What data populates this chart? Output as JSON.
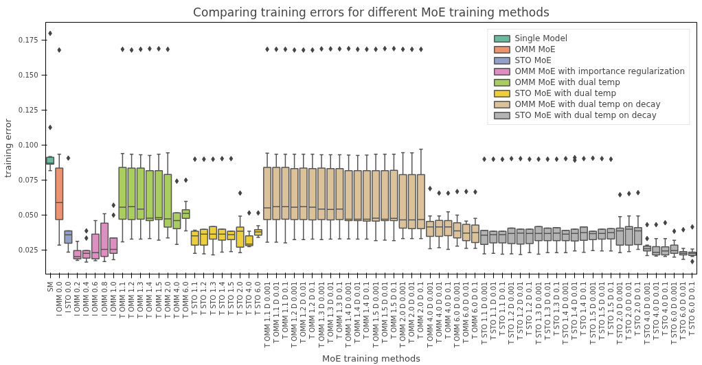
{
  "chart_data": {
    "type": "box",
    "title": "Comparing training errors for different MoE training methods",
    "xlabel": "MoE training methods",
    "ylabel": "training error",
    "categories": [
      "SM",
      "I OMM 0.0",
      "I STO 0.0",
      "I OMM 0.2",
      "I OMM 0.4",
      "I OMM 0.6",
      "I OMM 0.8",
      "I OMM 1.0",
      "T OMM 1.1",
      "T OMM 1.2",
      "T OMM 1.3",
      "T OMM 1.4",
      "T OMM 1.5",
      "T OMM 2.0",
      "T OMM 4.0",
      "T OMM 6.0",
      "T STO 1.1",
      "T STO 1.2",
      "T STO 1.3",
      "T STO 1.4",
      "T STO 1.5",
      "T STO 2.0",
      "T STO 4.0",
      "T STO 6.0",
      "T OMM 1.1 D 0.001",
      "T OMM 1.1 D 0.01",
      "T OMM 1.1 D 0.1",
      "T OMM 1.2 D 0.001",
      "T OMM 1.2 D 0.01",
      "T OMM 1.2 D 0.1",
      "T OMM 1.3 D 0.001",
      "T OMM 1.3 D 0.01",
      "T OMM 1.3 D 0.1",
      "T OMM 1.4 D 0.001",
      "T OMM 1.4 D 0.01",
      "T OMM 1.4 D 0.1",
      "T OMM 1.5 D 0.001",
      "T OMM 1.5 D 0.01",
      "T OMM 1.5 D 0.1",
      "T OMM 2.0 D 0.001",
      "T OMM 2.0 D 0.01",
      "T OMM 2.0 D 0.1",
      "T OMM 4.0 D 0.001",
      "T OMM 4.0 D 0.01",
      "T OMM 4.0 D 0.1",
      "T OMM 6.0 D 0.001",
      "T OMM 6.0 D 0.01",
      "T OMM 6.0 D 0.1",
      "T STO 1.1 D 0.001",
      "T STO 1.1 D 0.01",
      "T STO 1.1 D 0.1",
      "T STO 1.2 D 0.001",
      "T STO 1.2 D 0.01",
      "T STO 1.2 D 0.1",
      "T STO 1.3 D 0.001",
      "T STO 1.3 D 0.01",
      "T STO 1.3 D 0.1",
      "T STO 1.4 D 0.001",
      "T STO 1.4 D 0.01",
      "T STO 1.4 D 0.1",
      "T STO 1.5 D 0.001",
      "T STO 1.5 D 0.01",
      "T STO 1.5 D 0.1",
      "T STO 2.0 D 0.001",
      "T STO 2.0 D 0.01",
      "T STO 2.0 D 0.1",
      "T STO 4.0 D 0.001",
      "T STO 4.0 D 0.01",
      "T STO 4.0 D 0.1",
      "T STO 6.0 D 0.001",
      "T STO 6.0 D 0.01",
      "T STO 6.0 D 0.1"
    ],
    "ylim": [
      0.0077,
      0.1876
    ],
    "yticks": [
      0.025,
      {
        "value": 0.05,
        "label": "0.050"
      },
      0.075,
      {
        "value": 0.1,
        "label": "0.100"
      },
      0.125,
      {
        "value": 0.15,
        "label": "0.150"
      },
      0.175
    ],
    "grid": false,
    "legend": "top right",
    "marker": "diamond",
    "series": [
      {
        "name": "Single Model",
        "color": "#6bb99f",
        "x": [
          "SM"
        ],
        "boxes": [
          {
            "low": 0.0816,
            "q1": 0.0863,
            "median": 0.087,
            "q3": 0.0912,
            "high": 0.0917,
            "outliers": [
              0.1797,
              0.1125
            ]
          }
        ]
      },
      {
        "name": "OMM MoE",
        "color": "#ec9470",
        "x": [
          "I OMM 0.0"
        ],
        "boxes": [
          {
            "low": 0.0284,
            "q1": 0.0467,
            "median": 0.0588,
            "q3": 0.0834,
            "high": 0.0933,
            "outliers": [
              0.1678
            ]
          }
        ]
      },
      {
        "name": "STO MoE",
        "color": "#93a1c8",
        "x": [
          "I STO 0.0"
        ],
        "boxes": [
          {
            "low": 0.0234,
            "q1": 0.0297,
            "median": 0.0358,
            "q3": 0.0386,
            "high": 0.0386,
            "outliers": [
              0.0906
            ]
          }
        ]
      },
      {
        "name": "OMM MoE with importance regularization",
        "color": "#dc8fc0",
        "x": [
          "I OMM 0.2",
          "I OMM 0.4",
          "I OMM 0.6",
          "I OMM 0.8",
          "I OMM 1.0"
        ],
        "boxes": [
          {
            "low": 0.0175,
            "q1": 0.0186,
            "median": 0.0202,
            "q3": 0.0245,
            "high": 0.0311
          },
          {
            "low": 0.0163,
            "q1": 0.0191,
            "median": 0.0225,
            "q3": 0.0245,
            "high": 0.0245,
            "outliers": [
              0.0386,
              0.0334
            ]
          },
          {
            "low": 0.0172,
            "q1": 0.0186,
            "median": 0.023,
            "q3": 0.0363,
            "high": 0.0459
          },
          {
            "low": 0.0167,
            "q1": 0.0203,
            "median": 0.0253,
            "q3": 0.0441,
            "high": 0.0508
          },
          {
            "low": 0.018,
            "q1": 0.0225,
            "median": 0.0253,
            "q3": 0.0336,
            "high": 0.0336,
            "outliers": [
              0.0569,
              0.0498
            ]
          }
        ]
      },
      {
        "name": "OMM MoE with dual temp",
        "color": "#a9cd5e",
        "x": [
          "T OMM 1.1",
          "T OMM 1.2",
          "T OMM 1.3",
          "T OMM 1.4",
          "T OMM 1.5",
          "T OMM 2.0",
          "T OMM 4.0",
          "T OMM 6.0"
        ],
        "boxes": [
          {
            "low": 0.0308,
            "q1": 0.0469,
            "median": 0.0555,
            "q3": 0.0839,
            "high": 0.0938,
            "outliers": [
              0.1683
            ]
          },
          {
            "low": 0.0327,
            "q1": 0.0467,
            "median": 0.0558,
            "q3": 0.0834,
            "high": 0.0933,
            "outliers": [
              0.1678
            ]
          },
          {
            "low": 0.0327,
            "q1": 0.0469,
            "median": 0.0541,
            "q3": 0.0834,
            "high": 0.093,
            "outliers": [
              0.1683
            ]
          },
          {
            "low": 0.0331,
            "q1": 0.0459,
            "median": 0.0477,
            "q3": 0.0816,
            "high": 0.0925,
            "outliers": [
              0.1687
            ]
          },
          {
            "low": 0.032,
            "q1": 0.0467,
            "median": 0.048,
            "q3": 0.0816,
            "high": 0.0933,
            "outliers": [
              0.1687
            ]
          },
          {
            "low": 0.0336,
            "q1": 0.0413,
            "median": 0.0472,
            "q3": 0.0789,
            "high": 0.0944,
            "outliers": [
              0.1683
            ]
          },
          {
            "low": 0.0289,
            "q1": 0.0402,
            "median": 0.0459,
            "q3": 0.0514,
            "high": 0.0514,
            "outliers": [
              0.0741
            ]
          },
          {
            "low": 0.0386,
            "q1": 0.0475,
            "median": 0.0511,
            "q3": 0.0536,
            "high": 0.0597,
            "outliers": [
              0.0748
            ]
          }
        ]
      },
      {
        "name": "STO MoE with dual temp",
        "color": "#eccf3a",
        "x": [
          "T STO 1.1",
          "T STO 1.2",
          "T STO 1.3",
          "T STO 1.4",
          "T STO 1.5",
          "T STO 2.0",
          "T STO 4.0",
          "T STO 6.0"
        ],
        "boxes": [
          {
            "low": 0.0225,
            "q1": 0.0284,
            "median": 0.035,
            "q3": 0.0383,
            "high": 0.0391,
            "outliers": [
              0.0898
            ]
          },
          {
            "low": 0.0222,
            "q1": 0.0284,
            "median": 0.0363,
            "q3": 0.0397,
            "high": 0.0397,
            "outliers": [
              0.0898
            ]
          },
          {
            "low": 0.0214,
            "q1": 0.0327,
            "median": 0.0363,
            "q3": 0.0417,
            "high": 0.0417,
            "outliers": [
              0.0898
            ]
          },
          {
            "low": 0.0234,
            "q1": 0.032,
            "median": 0.0363,
            "q3": 0.0398,
            "high": 0.0398,
            "outliers": [
              0.0902
            ]
          },
          {
            "low": 0.0237,
            "q1": 0.0323,
            "median": 0.0359,
            "q3": 0.0383,
            "high": 0.0383,
            "outliers": [
              0.0902
            ]
          },
          {
            "low": 0.023,
            "q1": 0.0269,
            "median": 0.0383,
            "q3": 0.0413,
            "high": 0.0491,
            "outliers": [
              0.0656
            ]
          },
          {
            "low": 0.0273,
            "q1": 0.028,
            "median": 0.0291,
            "q3": 0.035,
            "high": 0.0383,
            "outliers": [
              0.0514
            ]
          },
          {
            "low": 0.0339,
            "q1": 0.0355,
            "median": 0.0378,
            "q3": 0.0394,
            "high": 0.0422,
            "outliers": [
              0.0514
            ]
          }
        ]
      },
      {
        "name": "OMM MoE with dual temp on decay",
        "color": "#dcc29b",
        "x": [
          "T OMM 1.1 D 0.001",
          "T OMM 1.1 D 0.01",
          "T OMM 1.1 D 0.1",
          "T OMM 1.2 D 0.001",
          "T OMM 1.2 D 0.01",
          "T OMM 1.2 D 0.1",
          "T OMM 1.3 D 0.001",
          "T OMM 1.3 D 0.01",
          "T OMM 1.3 D 0.1",
          "T OMM 1.4 D 0.001",
          "T OMM 1.4 D 0.01",
          "T OMM 1.4 D 0.1",
          "T OMM 1.5 D 0.001",
          "T OMM 1.5 D 0.01",
          "T OMM 1.5 D 0.1",
          "T OMM 2.0 D 0.001",
          "T OMM 2.0 D 0.01",
          "T OMM 2.0 D 0.1",
          "T OMM 4.0 D 0.001",
          "T OMM 4.0 D 0.01",
          "T OMM 4.0 D 0.1",
          "T OMM 6.0 D 0.001",
          "T OMM 6.0 D 0.01",
          "T OMM 6.0 D 0.1"
        ],
        "boxes": [
          {
            "low": 0.0305,
            "q1": 0.0467,
            "median": 0.055,
            "q3": 0.0839,
            "high": 0.0941,
            "outliers": [
              0.1683
            ]
          },
          {
            "low": 0.0305,
            "q1": 0.0467,
            "median": 0.0558,
            "q3": 0.0839,
            "high": 0.0933,
            "outliers": [
              0.1683
            ]
          },
          {
            "low": 0.03,
            "q1": 0.0469,
            "median": 0.0558,
            "q3": 0.0839,
            "high": 0.0933,
            "outliers": [
              0.1683
            ]
          },
          {
            "low": 0.0323,
            "q1": 0.0467,
            "median": 0.0555,
            "q3": 0.0831,
            "high": 0.0933,
            "outliers": [
              0.1678
            ]
          },
          {
            "low": 0.0323,
            "q1": 0.0467,
            "median": 0.0558,
            "q3": 0.0834,
            "high": 0.0933,
            "outliers": [
              0.1678
            ]
          },
          {
            "low": 0.0327,
            "q1": 0.0464,
            "median": 0.0555,
            "q3": 0.0831,
            "high": 0.0933,
            "outliers": [
              0.1678
            ]
          },
          {
            "low": 0.0323,
            "q1": 0.0467,
            "median": 0.0542,
            "q3": 0.0834,
            "high": 0.093,
            "outliers": [
              0.1686
            ]
          },
          {
            "low": 0.0327,
            "q1": 0.0464,
            "median": 0.0539,
            "q3": 0.0831,
            "high": 0.093,
            "outliers": [
              0.1686
            ]
          },
          {
            "low": 0.0328,
            "q1": 0.0467,
            "median": 0.0542,
            "q3": 0.0831,
            "high": 0.093,
            "outliers": [
              0.1686
            ]
          },
          {
            "low": 0.0328,
            "q1": 0.0459,
            "median": 0.0469,
            "q3": 0.0816,
            "high": 0.0928,
            "outliers": [
              0.1688
            ]
          },
          {
            "low": 0.0327,
            "q1": 0.0459,
            "median": 0.0469,
            "q3": 0.0816,
            "high": 0.0925,
            "outliers": [
              0.1683
            ]
          },
          {
            "low": 0.0327,
            "q1": 0.0456,
            "median": 0.0469,
            "q3": 0.0816,
            "high": 0.0928,
            "outliers": [
              0.1683
            ]
          },
          {
            "low": 0.0316,
            "q1": 0.0456,
            "median": 0.0477,
            "q3": 0.0816,
            "high": 0.0933,
            "outliers": [
              0.1683
            ]
          },
          {
            "low": 0.032,
            "q1": 0.0459,
            "median": 0.0469,
            "q3": 0.0816,
            "high": 0.0933,
            "outliers": [
              0.1688
            ]
          },
          {
            "low": 0.0316,
            "q1": 0.0459,
            "median": 0.0475,
            "q3": 0.0819,
            "high": 0.0933,
            "outliers": [
              0.1688
            ]
          },
          {
            "low": 0.0331,
            "q1": 0.0405,
            "median": 0.0464,
            "q3": 0.0788,
            "high": 0.0945,
            "outliers": [
              0.1683
            ]
          },
          {
            "low": 0.0331,
            "q1": 0.0402,
            "median": 0.0464,
            "q3": 0.0788,
            "high": 0.0944,
            "outliers": [
              0.1683
            ]
          },
          {
            "low": 0.0331,
            "q1": 0.0402,
            "median": 0.0467,
            "q3": 0.0788,
            "high": 0.0969,
            "outliers": [
              0.1683
            ]
          },
          {
            "low": 0.0258,
            "q1": 0.0347,
            "median": 0.0414,
            "q3": 0.0453,
            "high": 0.0492,
            "outliers": [
              0.0688
            ]
          },
          {
            "low": 0.0266,
            "q1": 0.0347,
            "median": 0.0414,
            "q3": 0.0461,
            "high": 0.0492,
            "outliers": [
              0.0656
            ]
          },
          {
            "low": 0.0253,
            "q1": 0.0352,
            "median": 0.0414,
            "q3": 0.0459,
            "high": 0.0522,
            "outliers": [
              0.0655
            ]
          },
          {
            "low": 0.0277,
            "q1": 0.0336,
            "median": 0.0386,
            "q3": 0.0444,
            "high": 0.0498,
            "outliers": [
              0.0667
            ]
          },
          {
            "low": 0.0261,
            "q1": 0.0316,
            "median": 0.037,
            "q3": 0.0433,
            "high": 0.0456,
            "outliers": [
              0.0667
            ]
          },
          {
            "low": 0.0261,
            "q1": 0.0303,
            "median": 0.0373,
            "q3": 0.0428,
            "high": 0.0475,
            "outliers": [
              0.0664
            ]
          }
        ]
      },
      {
        "name": "STO MoE with dual temp on decay",
        "color": "#b3b3b3",
        "x": [
          "T STO 1.1 D 0.001",
          "T STO 1.1 D 0.01",
          "T STO 1.1 D 0.1",
          "T STO 1.2 D 0.001",
          "T STO 1.2 D 0.01",
          "T STO 1.2 D 0.1",
          "T STO 1.3 D 0.001",
          "T STO 1.3 D 0.01",
          "T STO 1.3 D 0.1",
          "T STO 1.4 D 0.001",
          "T STO 1.4 D 0.01",
          "T STO 1.4 D 0.1",
          "T STO 1.5 D 0.001",
          "T STO 1.5 D 0.01",
          "T STO 1.5 D 0.1",
          "T STO 2.0 D 0.001",
          "T STO 2.0 D 0.01",
          "T STO 2.0 D 0.1",
          "T STO 4.0 D 0.001",
          "T STO 4.0 D 0.01",
          "T STO 4.0 D 0.1",
          "T STO 6.0 D 0.001",
          "T STO 6.0 D 0.01",
          "T STO 6.0 D 0.1"
        ],
        "boxes": [
          {
            "low": 0.0222,
            "q1": 0.0289,
            "median": 0.0355,
            "q3": 0.0389,
            "high": 0.0389,
            "outliers": [
              0.0898
            ]
          },
          {
            "low": 0.0225,
            "q1": 0.03,
            "median": 0.0359,
            "q3": 0.0383,
            "high": 0.0383,
            "outliers": [
              0.0898
            ]
          },
          {
            "low": 0.0219,
            "q1": 0.03,
            "median": 0.0359,
            "q3": 0.0383,
            "high": 0.0383,
            "outliers": [
              0.0897
            ]
          },
          {
            "low": 0.0222,
            "q1": 0.0295,
            "median": 0.0367,
            "q3": 0.0406,
            "high": 0.0406,
            "outliers": [
              0.0902
            ]
          },
          {
            "low": 0.0217,
            "q1": 0.0292,
            "median": 0.037,
            "q3": 0.0398,
            "high": 0.0398,
            "outliers": [
              0.0902
            ]
          },
          {
            "low": 0.023,
            "q1": 0.0295,
            "median": 0.0367,
            "q3": 0.0398,
            "high": 0.0398,
            "outliers": [
              0.0898
            ]
          },
          {
            "low": 0.0219,
            "q1": 0.0316,
            "median": 0.0367,
            "q3": 0.0417,
            "high": 0.0417,
            "outliers": [
              0.0898
            ]
          },
          {
            "low": 0.023,
            "q1": 0.0316,
            "median": 0.0367,
            "q3": 0.0406,
            "high": 0.0406,
            "outliers": [
              0.0898
            ]
          },
          {
            "low": 0.023,
            "q1": 0.0316,
            "median": 0.037,
            "q3": 0.0409,
            "high": 0.0409,
            "outliers": [
              0.0898
            ]
          },
          {
            "low": 0.023,
            "q1": 0.0316,
            "median": 0.0363,
            "q3": 0.0389,
            "high": 0.0389,
            "outliers": [
              0.0902
            ]
          },
          {
            "low": 0.0242,
            "q1": 0.0313,
            "median": 0.0367,
            "q3": 0.0398,
            "high": 0.0398,
            "outliers": [
              0.0909,
              0.0891
            ]
          },
          {
            "low": 0.0233,
            "q1": 0.0319,
            "median": 0.0373,
            "q3": 0.0414,
            "high": 0.0414,
            "outliers": [
              0.0902
            ]
          },
          {
            "low": 0.0245,
            "q1": 0.0323,
            "median": 0.0366,
            "q3": 0.0383,
            "high": 0.0383,
            "outliers": [
              0.0905
            ]
          },
          {
            "low": 0.0242,
            "q1": 0.0327,
            "median": 0.0367,
            "q3": 0.0398,
            "high": 0.0398,
            "outliers": [
              0.0902
            ]
          },
          {
            "low": 0.0242,
            "q1": 0.0328,
            "median": 0.0373,
            "q3": 0.0402,
            "high": 0.0402,
            "outliers": [
              0.0898
            ]
          },
          {
            "low": 0.023,
            "q1": 0.0284,
            "median": 0.0386,
            "q3": 0.0406,
            "high": 0.0488,
            "outliers": [
              0.0644
            ]
          },
          {
            "low": 0.0238,
            "q1": 0.0284,
            "median": 0.0398,
            "q3": 0.0417,
            "high": 0.0492,
            "outliers": [
              0.0652
            ]
          },
          {
            "low": 0.0253,
            "q1": 0.0288,
            "median": 0.0386,
            "q3": 0.0409,
            "high": 0.0492,
            "outliers": [
              0.0659
            ]
          },
          {
            "low": 0.0209,
            "q1": 0.0242,
            "median": 0.0258,
            "q3": 0.0277,
            "high": 0.0284,
            "outliers": [
              0.043,
              0.0331
            ]
          },
          {
            "low": 0.0206,
            "q1": 0.0214,
            "median": 0.0233,
            "q3": 0.0273,
            "high": 0.0331,
            "outliers": [
              0.043
            ]
          },
          {
            "low": 0.0203,
            "q1": 0.0214,
            "median": 0.0242,
            "q3": 0.0272,
            "high": 0.0331,
            "outliers": [
              0.0444
            ]
          },
          {
            "low": 0.0198,
            "q1": 0.0225,
            "median": 0.0245,
            "q3": 0.0284,
            "high": 0.0319,
            "outliers": [
              0.0383
            ]
          },
          {
            "low": 0.0183,
            "q1": 0.0214,
            "median": 0.0225,
            "q3": 0.0238,
            "high": 0.0261,
            "outliers": [
              0.0394
            ]
          },
          {
            "low": 0.0203,
            "q1": 0.0211,
            "median": 0.0225,
            "q3": 0.0234,
            "high": 0.0256,
            "outliers": [
              0.0414,
              0.0167
            ]
          }
        ]
      }
    ]
  }
}
